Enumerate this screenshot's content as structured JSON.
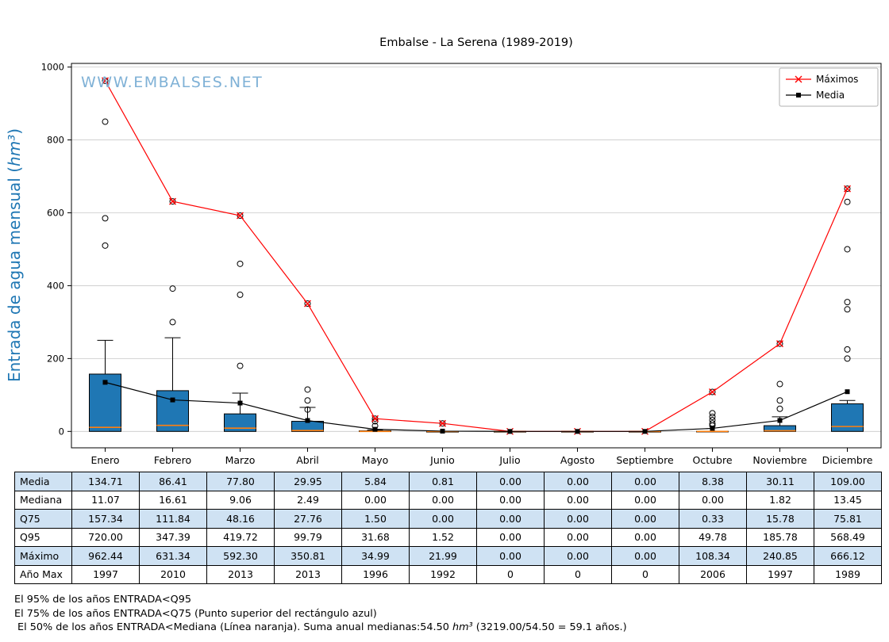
{
  "chart_data": {
    "type": "boxplot+line",
    "title": "Embalse - La Serena (1989-2019)",
    "ylabel_pre": "Entrada de agua mensual (",
    "ylabel_unit": "hm³",
    "ylabel_post": ")",
    "ylabel_color": "#1f77b4",
    "watermark": "WWW.EMBALSES.NET",
    "watermark_color": "#7fb1d6",
    "categories": [
      "Enero",
      "Febrero",
      "Marzo",
      "Abril",
      "Mayo",
      "Junio",
      "Julio",
      "Agosto",
      "Septiembre",
      "Octubre",
      "Noviembre",
      "Diciembre"
    ],
    "yticks": [
      0,
      200,
      400,
      600,
      800,
      1000
    ],
    "ylim": [
      -45,
      1010
    ],
    "grid": true,
    "legend_position": "top-right",
    "series": [
      {
        "name": "Máximos",
        "type": "line",
        "color": "#ff0000",
        "marker": "x",
        "values": [
          962.44,
          631.34,
          592.3,
          350.81,
          34.99,
          21.99,
          0.0,
          0.0,
          0.0,
          108.34,
          240.85,
          666.12
        ]
      },
      {
        "name": "Media",
        "type": "line",
        "color": "#000000",
        "marker": "square",
        "values": [
          134.71,
          86.41,
          77.8,
          29.95,
          5.84,
          0.81,
          0.0,
          0.0,
          0.0,
          8.38,
          30.11,
          109.0
        ]
      }
    ],
    "boxplot": {
      "box_color": "#1f77b4",
      "median_color": "#ff7f0e",
      "median": [
        11.07,
        16.61,
        9.06,
        2.49,
        0.0,
        0.0,
        0.0,
        0.0,
        0.0,
        0.0,
        1.82,
        13.45
      ],
      "q25": [
        0,
        0,
        0,
        0,
        0,
        0,
        0,
        0,
        0,
        0,
        0,
        0
      ],
      "q75": [
        157.34,
        111.84,
        48.16,
        27.76,
        1.5,
        0.0,
        0.0,
        0.0,
        0.0,
        0.33,
        15.78,
        75.81
      ],
      "q95": [
        720.0,
        347.39,
        419.72,
        99.79,
        31.68,
        1.52,
        0.0,
        0.0,
        0.0,
        49.78,
        185.78,
        568.49
      ],
      "whisker_low": [
        0,
        0,
        0,
        0,
        0,
        0,
        0,
        0,
        0,
        0,
        0,
        0
      ],
      "whisker_high": [
        250,
        257,
        105,
        66,
        4,
        0,
        0,
        0,
        0,
        0.8,
        40,
        85
      ],
      "outliers": [
        [
          510,
          585,
          850,
          962.44
        ],
        [
          300,
          392,
          631.34
        ],
        [
          180,
          375,
          460,
          592.3
        ],
        [
          60,
          85,
          115,
          350.81
        ],
        [
          15,
          28,
          34.99
        ],
        [
          21.99
        ],
        [],
        [],
        [],
        [
          16,
          22,
          31,
          40,
          50,
          108.34
        ],
        [
          62,
          85,
          130,
          240.85
        ],
        [
          200,
          225,
          335,
          355,
          500,
          630,
          666.12
        ]
      ]
    }
  },
  "table": {
    "alt_row_color": "#cfe2f3",
    "row_labels": [
      "Media",
      "Mediana",
      "Q75",
      "Q95",
      "Máximo",
      "Año Max"
    ],
    "rows": [
      [
        "134.71",
        "86.41",
        "77.80",
        "29.95",
        "5.84",
        "0.81",
        "0.00",
        "0.00",
        "0.00",
        "8.38",
        "30.11",
        "109.00"
      ],
      [
        "11.07",
        "16.61",
        "9.06",
        "2.49",
        "0.00",
        "0.00",
        "0.00",
        "0.00",
        "0.00",
        "0.00",
        "1.82",
        "13.45"
      ],
      [
        "157.34",
        "111.84",
        "48.16",
        "27.76",
        "1.50",
        "0.00",
        "0.00",
        "0.00",
        "0.00",
        "0.33",
        "15.78",
        "75.81"
      ],
      [
        "720.00",
        "347.39",
        "419.72",
        "99.79",
        "31.68",
        "1.52",
        "0.00",
        "0.00",
        "0.00",
        "49.78",
        "185.78",
        "568.49"
      ],
      [
        "962.44",
        "631.34",
        "592.30",
        "350.81",
        "34.99",
        "21.99",
        "0.00",
        "0.00",
        "0.00",
        "108.34",
        "240.85",
        "666.12"
      ],
      [
        "1997",
        "2010",
        "2013",
        "2013",
        "1996",
        "1992",
        "0",
        "0",
        "0",
        "2006",
        "1997",
        "1989"
      ]
    ]
  },
  "notes": {
    "line1": "El 95% de los años ENTRADA<Q95",
    "line2": "El 75% de los años ENTRADA<Q75 (Punto superior del rectángulo azul)",
    "line3_pre": "El 50% de los años ENTRADA<Mediana (Línea naranja). Suma anual medianas:54.50 ",
    "line3_unit": "hm³",
    "line3_post": " (3219.00/54.50 = 59.1 años.)"
  }
}
